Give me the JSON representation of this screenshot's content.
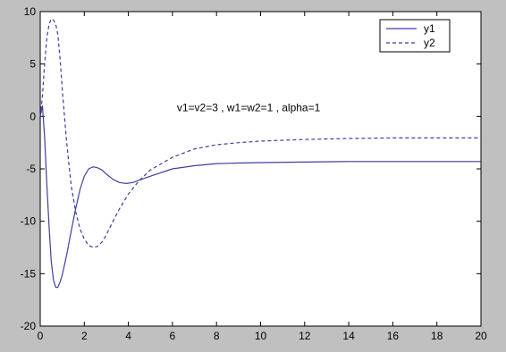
{
  "chart_data": {
    "type": "line",
    "title": "",
    "xlabel": "",
    "ylabel": "",
    "xlim": [
      0,
      20
    ],
    "ylim": [
      -20,
      10
    ],
    "x_ticks": [
      "0",
      "2",
      "4",
      "6",
      "8",
      "10",
      "12",
      "14",
      "16",
      "18",
      "20"
    ],
    "y_ticks": [
      "10",
      "5",
      "0",
      "-5",
      "-10",
      "-15",
      "-20"
    ],
    "x_tick_values": [
      0,
      2,
      4,
      6,
      8,
      10,
      12,
      14,
      16,
      18,
      20
    ],
    "y_tick_values": [
      10,
      5,
      0,
      -5,
      -10,
      -15,
      -20
    ],
    "grid": false,
    "legend_position": "top-right",
    "annotation": "v1=v2=3 , w1=w2=1 ,  alpha=1",
    "annotation_anchor": [
      6.2,
      0.5
    ],
    "series": [
      {
        "name": "y1",
        "style": "solid",
        "color": "#3f3f9f",
        "x": [
          0,
          0.1,
          0.2,
          0.3,
          0.4,
          0.5,
          0.6,
          0.7,
          0.8,
          0.9,
          1.0,
          1.2,
          1.4,
          1.6,
          1.8,
          2.0,
          2.2,
          2.4,
          2.6,
          2.8,
          3.0,
          3.3,
          3.6,
          3.9,
          4.2,
          4.6,
          5.0,
          6.0,
          7.0,
          8.0,
          9.0,
          10.0,
          12.0,
          14.0,
          16.0,
          18.0,
          20.0
        ],
        "y": [
          0,
          1.0,
          -2.0,
          -6.5,
          -10.5,
          -13.8,
          -15.6,
          -16.3,
          -16.3,
          -15.8,
          -15.1,
          -13.2,
          -11.0,
          -8.9,
          -7.0,
          -5.7,
          -5.0,
          -4.8,
          -4.9,
          -5.1,
          -5.5,
          -6.0,
          -6.3,
          -6.4,
          -6.3,
          -6.0,
          -5.7,
          -5.0,
          -4.7,
          -4.5,
          -4.45,
          -4.4,
          -4.35,
          -4.3,
          -4.3,
          -4.3,
          -4.3
        ]
      },
      {
        "name": "y2",
        "style": "dashed",
        "color": "#3f3f9f",
        "x": [
          0,
          0.1,
          0.2,
          0.3,
          0.4,
          0.5,
          0.6,
          0.7,
          0.8,
          0.9,
          1.0,
          1.2,
          1.4,
          1.6,
          1.8,
          2.0,
          2.2,
          2.4,
          2.6,
          2.8,
          3.0,
          3.3,
          3.6,
          4.0,
          4.5,
          5.0,
          6.0,
          7.0,
          8.0,
          9.0,
          10.0,
          12.0,
          14.0,
          16.0,
          18.0,
          20.0
        ],
        "y": [
          0,
          2.0,
          5.0,
          7.5,
          8.8,
          9.3,
          9.2,
          8.8,
          7.8,
          5.5,
          2.5,
          -2.5,
          -6.5,
          -9.0,
          -10.7,
          -11.7,
          -12.3,
          -12.5,
          -12.4,
          -12.0,
          -11.3,
          -10.0,
          -8.8,
          -7.4,
          -6.1,
          -5.1,
          -3.9,
          -3.1,
          -2.7,
          -2.5,
          -2.35,
          -2.2,
          -2.1,
          -2.05,
          -2.05,
          -2.05
        ]
      }
    ]
  },
  "colors": {
    "background": "#c0c0c0",
    "plot_area": "#ffffff",
    "axes": "#000000",
    "line": "#3f3f9f"
  }
}
